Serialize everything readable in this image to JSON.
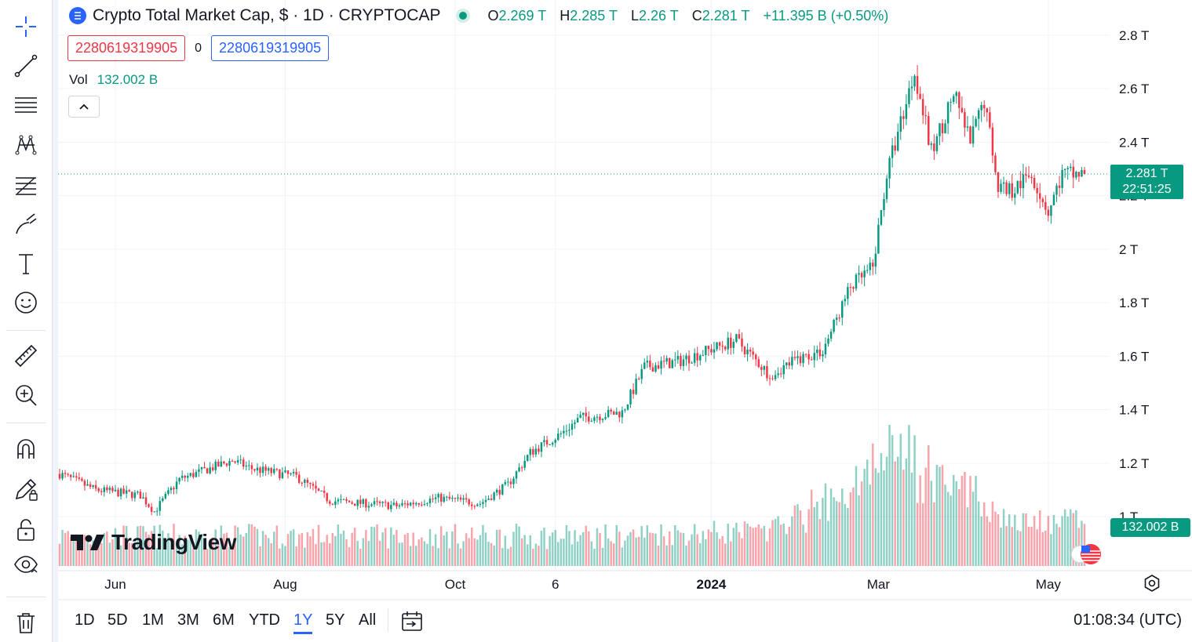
{
  "colors": {
    "up": "#089981",
    "down": "#f23645",
    "accent": "#2962ff",
    "grid": "#f0f3fa",
    "text": "#131722"
  },
  "header": {
    "title": "Crypto Total Market Cap, $ · 1D · CRYPTOCAP",
    "ohlc": {
      "o_label": "O",
      "o": "2.269 T",
      "h_label": "H",
      "h": "2.285 T",
      "l_label": "L",
      "l": "2.26 T",
      "c_label": "C",
      "c": "2.281 T",
      "change": "+11.395 B (+0.50%)"
    },
    "box_left": "2280619319905",
    "box_mid": "0",
    "box_right": "2280619319905",
    "vol_label": "Vol",
    "vol_value": "132.002 B"
  },
  "price_tag": {
    "price": "2.281 T",
    "countdown": "22:51:25"
  },
  "vol_tag": "132.002 B",
  "logo_text": "TradingView",
  "toolbar": {
    "icons": [
      "crosshair-icon",
      "trend-line-icon",
      "horizontal-lines-icon",
      "pattern-icon",
      "fib-icon",
      "brush-icon",
      "text-icon",
      "emoji-icon",
      "ruler-icon",
      "zoom-in-icon",
      "magnet-icon",
      "lock-pencil-icon",
      "lock-icon",
      "eye-icon",
      "trash-icon"
    ]
  },
  "bottom": {
    "ranges": [
      "1D",
      "5D",
      "1M",
      "3M",
      "6M",
      "YTD",
      "1Y",
      "5Y",
      "All"
    ],
    "active_range": "1Y",
    "time": "01:08:34 (UTC)"
  },
  "chart_data": {
    "type": "candlestick",
    "title": "Crypto Total Market Cap, $ · 1D · CRYPTOCAP",
    "y_ticks": [
      "2.8 T",
      "2.6 T",
      "2.4 T",
      "2.2 T",
      "2 T",
      "1.8 T",
      "1.6 T",
      "1.4 T",
      "1.2 T",
      "1 T"
    ],
    "y_tick_values": [
      2.8,
      2.6,
      2.4,
      2.2,
      2.0,
      1.8,
      1.6,
      1.4,
      1.2,
      1.0
    ],
    "ylim": [
      0.98,
      2.82
    ],
    "x_ticks": [
      "Jun",
      "Aug",
      "Oct",
      "6",
      "2024",
      "Mar",
      "May"
    ],
    "x_tick_dates": [
      "2023-06-01",
      "2023-08-01",
      "2023-10-01",
      "2023-11-06",
      "2024-01-01",
      "2024-03-01",
      "2024-05-01"
    ],
    "x_range": [
      "2023-05-12",
      "2024-05-14"
    ],
    "grid": true,
    "last_price": 2.281,
    "series_anchors": [
      [
        "2023-05-12",
        1.16
      ],
      [
        "2023-05-25",
        1.1
      ],
      [
        "2023-06-10",
        1.08
      ],
      [
        "2023-06-15",
        1.02
      ],
      [
        "2023-06-24",
        1.14
      ],
      [
        "2023-07-13",
        1.21
      ],
      [
        "2023-07-20",
        1.18
      ],
      [
        "2023-08-05",
        1.15
      ],
      [
        "2023-08-17",
        1.06
      ],
      [
        "2023-09-10",
        1.04
      ],
      [
        "2023-09-25",
        1.07
      ],
      [
        "2023-10-10",
        1.05
      ],
      [
        "2023-10-20",
        1.12
      ],
      [
        "2023-10-28",
        1.24
      ],
      [
        "2023-11-08",
        1.31
      ],
      [
        "2023-11-15",
        1.37
      ],
      [
        "2023-11-30",
        1.39
      ],
      [
        "2023-12-08",
        1.56
      ],
      [
        "2023-12-20",
        1.58
      ],
      [
        "2024-01-10",
        1.66
      ],
      [
        "2024-01-22",
        1.53
      ],
      [
        "2024-02-01",
        1.59
      ],
      [
        "2024-02-10",
        1.62
      ],
      [
        "2024-02-20",
        1.86
      ],
      [
        "2024-02-28",
        1.93
      ],
      [
        "2024-03-04",
        2.28
      ],
      [
        "2024-03-14",
        2.67
      ],
      [
        "2024-03-20",
        2.36
      ],
      [
        "2024-03-28",
        2.58
      ],
      [
        "2024-04-03",
        2.4
      ],
      [
        "2024-04-08",
        2.56
      ],
      [
        "2024-04-13",
        2.24
      ],
      [
        "2024-04-18",
        2.22
      ],
      [
        "2024-04-25",
        2.28
      ],
      [
        "2024-05-01",
        2.14
      ],
      [
        "2024-05-06",
        2.28
      ],
      [
        "2024-05-14",
        2.281
      ]
    ],
    "volume": {
      "last": "132.002 B",
      "peak_date": "2024-03-05"
    }
  }
}
